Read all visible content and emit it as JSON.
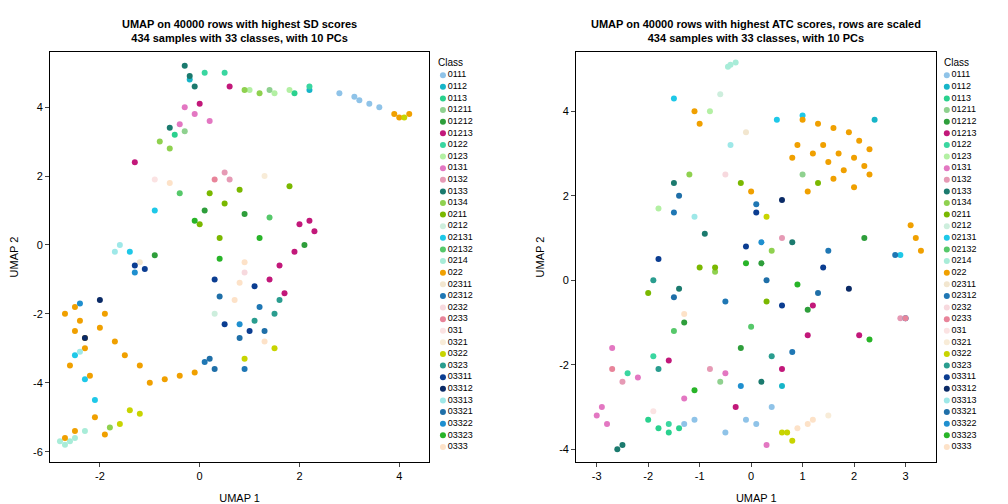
{
  "chart_data": [
    {
      "type": "scatter",
      "title": "UMAP on 40000 rows with highest SD scores\n434 samples with 33 classes, with 10 PCs",
      "x_label": "UMAP 1",
      "y_label": "UMAP 2",
      "xlim": [
        -3.0,
        4.6
      ],
      "ylim": [
        -6.3,
        5.6
      ],
      "xticks": [
        -2,
        0,
        2,
        4
      ],
      "yticks": [
        -6,
        -4,
        -2,
        0,
        2,
        4
      ],
      "legend": "right",
      "legend_title": "Class",
      "marker": "circle",
      "grid": false,
      "series": [
        {
          "name": "0111",
          "color": "#8fc3e8",
          "x": [
            3.2,
            3.4,
            3.6,
            3.1,
            2.8
          ],
          "y": [
            4.2,
            4.1,
            4.0,
            4.3,
            4.4
          ]
        },
        {
          "name": "0112",
          "color": "#17b5c8",
          "x": [
            2.2,
            -0.2
          ],
          "y": [
            4.5,
            4.8
          ]
        },
        {
          "name": "0113",
          "color": "#2ad18e",
          "x": [
            1.9,
            -0.5
          ],
          "y": [
            4.4,
            3.2
          ]
        },
        {
          "name": "01211",
          "color": "#8fd18f",
          "x": [
            -0.3,
            1.4
          ],
          "y": [
            3.3,
            4.5
          ]
        },
        {
          "name": "01212",
          "color": "#2e9e3b",
          "x": [
            0.1,
            0.9,
            2.1,
            -0.9
          ],
          "y": [
            1.0,
            0.9,
            0.0,
            -0.3
          ]
        },
        {
          "name": "01213",
          "color": "#c2187a",
          "x": [
            0.0,
            -1.3,
            0.6,
            2.0,
            2.2,
            1.9,
            1.6,
            2.3,
            1.7,
            1.4
          ],
          "y": [
            4.1,
            2.4,
            4.6,
            0.6,
            0.7,
            -0.2,
            -0.6,
            0.4,
            -1.4,
            -1.0
          ]
        },
        {
          "name": "0122",
          "color": "#3ad6a0",
          "x": [
            0.5,
            0.1,
            2.2
          ],
          "y": [
            5.0,
            5.0,
            4.6
          ]
        },
        {
          "name": "0123",
          "color": "#b3f0a3",
          "x": [
            1.0,
            1.5,
            1.8
          ],
          "y": [
            4.5,
            4.4,
            4.5
          ]
        },
        {
          "name": "0131",
          "color": "#e377c2",
          "x": [
            -0.1,
            -0.3,
            0.2,
            -0.4
          ],
          "y": [
            3.8,
            4.0,
            3.6,
            3.5
          ]
        },
        {
          "name": "0132",
          "color": "#e69ab5",
          "x": [
            0.5,
            0.6
          ],
          "y": [
            2.1,
            1.9
          ]
        },
        {
          "name": "0133",
          "color": "#1b7a6e",
          "x": [
            -0.3,
            -0.2,
            -0.1,
            -0.6
          ],
          "y": [
            5.2,
            4.9,
            4.6,
            3.4
          ]
        },
        {
          "name": "0134",
          "color": "#8fd14f",
          "x": [
            -0.8,
            -0.6,
            0.9,
            1.2,
            -1.8
          ],
          "y": [
            3.0,
            2.8,
            4.5,
            4.4,
            -5.3
          ]
        },
        {
          "name": "0211",
          "color": "#7ab800",
          "x": [
            0.2,
            0.5,
            0.0,
            0.8,
            1.8,
            0.4
          ],
          "y": [
            1.5,
            1.2,
            0.6,
            1.6,
            1.7,
            0.2
          ]
        },
        {
          "name": "0212",
          "color": "#cdeedd",
          "x": [
            0.3
          ],
          "y": [
            -2.0
          ]
        },
        {
          "name": "02131",
          "color": "#1ec8e8",
          "x": [
            -1.4,
            -0.9,
            -2.5,
            -2.3,
            -2.1
          ],
          "y": [
            -0.2,
            1.0,
            -3.2,
            -3.9,
            -4.5
          ]
        },
        {
          "name": "02132",
          "color": "#56c86a",
          "x": [
            -0.4,
            1.4
          ],
          "y": [
            1.5,
            0.8
          ]
        },
        {
          "name": "0214",
          "color": "#a8ecd8",
          "x": [
            -2.8,
            -2.7,
            -2.6,
            -2.5,
            -2.3
          ],
          "y": [
            -5.7,
            -5.8,
            -5.7,
            -5.6,
            -5.4
          ]
        },
        {
          "name": "022",
          "color": "#f0a000",
          "x": [
            4.2,
            4.0,
            3.9,
            -2.7,
            -2.5,
            -2.3,
            -2.6,
            -2.4,
            -2.0,
            -1.7,
            -1.5,
            -2.2,
            -2.5,
            -1.2,
            -0.7,
            -0.4,
            -0.1,
            -1.0,
            -2.5,
            -2.1,
            -1.9,
            -2.7,
            -2.3,
            -1.9
          ],
          "y": [
            3.8,
            3.7,
            3.8,
            -2.0,
            -2.5,
            -3.0,
            -3.5,
            -2.2,
            -2.4,
            -2.8,
            -3.2,
            -3.8,
            -1.8,
            -3.5,
            -3.9,
            -3.8,
            -3.7,
            -4.0,
            -5.4,
            -5.0,
            -5.5,
            -5.6,
            -2.7,
            -2.0
          ]
        },
        {
          "name": "02311",
          "color": "#f2e6cf",
          "x": [
            -1.2
          ],
          "y": [
            -0.5
          ]
        },
        {
          "name": "02312",
          "color": "#1f77b4",
          "x": [
            0.1,
            1.2,
            0.9
          ],
          "y": [
            -3.4,
            -1.8,
            -3.6
          ]
        },
        {
          "name": "0232",
          "color": "#f7d9de",
          "x": [
            0.9
          ],
          "y": [
            -0.8
          ]
        },
        {
          "name": "0233",
          "color": "#e8849a",
          "x": [
            0.3
          ],
          "y": [
            1.9
          ]
        },
        {
          "name": "031",
          "color": "#fbe3e3",
          "x": [
            -0.9
          ],
          "y": [
            1.9
          ]
        },
        {
          "name": "0321",
          "color": "#f8ecd8",
          "x": [
            1.3
          ],
          "y": [
            2.0
          ]
        },
        {
          "name": "0322",
          "color": "#c8d400",
          "x": [
            4.1,
            1.5,
            0.9,
            -1.4,
            -1.2,
            -1.6
          ],
          "y": [
            3.7,
            -3.0,
            -3.3,
            -4.8,
            -4.9,
            -5.2
          ]
        },
        {
          "name": "0323",
          "color": "#2a9d8f",
          "x": [
            1.1,
            1.5,
            1.6
          ],
          "y": [
            -2.2,
            -2.0,
            -1.6
          ]
        },
        {
          "name": "03311",
          "color": "#0b3d91",
          "x": [
            0.3,
            -1.1,
            1.1,
            0.5,
            1.0,
            -1.3
          ],
          "y": [
            -1.0,
            -0.7,
            -1.2,
            -2.3,
            -2.5,
            -0.6
          ]
        },
        {
          "name": "03312",
          "color": "#0a2a66",
          "x": [
            -2.0,
            -2.3
          ],
          "y": [
            -1.6,
            -2.7
          ]
        },
        {
          "name": "03313",
          "color": "#9ee8e8",
          "x": [
            -1.6,
            -1.7,
            -2.4
          ],
          "y": [
            0.0,
            -0.2,
            -3.1
          ]
        },
        {
          "name": "03321",
          "color": "#1f6fa8",
          "x": [
            0.4,
            0.8,
            1.3,
            0.2,
            0.3
          ],
          "y": [
            -1.5,
            -2.7,
            -2.5,
            -3.3,
            -3.6
          ]
        },
        {
          "name": "03322",
          "color": "#1f8fcf",
          "x": [
            -1.3,
            0.8,
            -2.4
          ],
          "y": [
            -0.8,
            -2.3,
            -1.7
          ]
        },
        {
          "name": "03323",
          "color": "#28b428",
          "x": [
            -0.1,
            1.2,
            0.4
          ],
          "y": [
            0.7,
            0.2,
            -0.4
          ]
        },
        {
          "name": "0333",
          "color": "#fde2c8",
          "x": [
            -0.6,
            0.7,
            0.8,
            0.9,
            1.3
          ],
          "y": [
            1.8,
            -1.6,
            -1.1,
            -0.5,
            -2.8
          ]
        }
      ]
    },
    {
      "type": "scatter",
      "title": "UMAP on 40000 rows with highest ATC scores, rows are scaled\n434 samples with 33 classes, with 10 PCs",
      "x_label": "UMAP 1",
      "y_label": "UMAP 2",
      "xlim": [
        -3.4,
        3.6
      ],
      "ylim": [
        -4.3,
        5.4
      ],
      "xticks": [
        -3,
        -2,
        -1,
        0,
        1,
        2,
        3
      ],
      "yticks": [
        -4,
        -2,
        0,
        2,
        4
      ],
      "legend": "right",
      "legend_title": "Class",
      "marker": "circle",
      "grid": false,
      "series": [
        {
          "name": "0111",
          "color": "#8fc3e8",
          "x": [
            -0.1,
            0.1,
            -1.3,
            -1.1,
            -0.5,
            0.4
          ],
          "y": [
            -3.3,
            -3.4,
            -3.4,
            -3.3,
            -3.6,
            -3.0
          ]
        },
        {
          "name": "0112",
          "color": "#17b5c8",
          "x": [
            0.6,
            2.4
          ],
          "y": [
            -2.5,
            3.8
          ]
        },
        {
          "name": "0113",
          "color": "#2ad18e",
          "x": [
            -1.6,
            -1.8,
            -2.0,
            -1.4
          ],
          "y": [
            -3.6,
            -3.5,
            -3.3,
            -3.5
          ]
        },
        {
          "name": "01211",
          "color": "#8fd18f",
          "x": [
            -0.6,
            1.0
          ],
          "y": [
            -2.4,
            2.5
          ]
        },
        {
          "name": "01212",
          "color": "#2e9e3b",
          "x": [
            1.1,
            0.2,
            -1.3,
            2.2,
            -0.2
          ],
          "y": [
            -0.7,
            0.4,
            -1.0,
            1.0,
            -1.6
          ]
        },
        {
          "name": "01213",
          "color": "#c2187a",
          "x": [
            1.2,
            1.1,
            0.6,
            2.1,
            -0.3,
            3.0,
            -1.6
          ],
          "y": [
            -0.6,
            -1.3,
            -2.1,
            -1.3,
            -3.0,
            -0.9,
            -1.9
          ]
        },
        {
          "name": "0122",
          "color": "#3ad6a0",
          "x": [
            -2.4,
            -1.9,
            -1.6
          ],
          "y": [
            -2.2,
            -1.8,
            -3.4
          ]
        },
        {
          "name": "0123",
          "color": "#b3f0a3",
          "x": [
            -0.8,
            -1.8
          ],
          "y": [
            4.0,
            1.7
          ]
        },
        {
          "name": "0131",
          "color": "#e377c2",
          "x": [
            -3.0,
            -2.9,
            -2.8,
            -2.2,
            -1.3,
            -0.5,
            0.3,
            -2.7
          ],
          "y": [
            -3.2,
            -3.0,
            -3.4,
            -2.3,
            -2.8,
            -2.2,
            -3.9,
            -1.6
          ]
        },
        {
          "name": "0132",
          "color": "#e69ab5",
          "x": [
            -2.5,
            -0.8,
            0.6,
            2.9
          ],
          "y": [
            -2.4,
            -2.1,
            1.0,
            -0.9
          ]
        },
        {
          "name": "0133",
          "color": "#1b7a6e",
          "x": [
            -1.5,
            -0.9,
            0.8,
            -2.6,
            -2.5,
            -1.4,
            0.2
          ],
          "y": [
            2.3,
            1.1,
            0.9,
            -4.0,
            -3.9,
            -0.2,
            -2.4
          ]
        },
        {
          "name": "0134",
          "color": "#8fd14f",
          "x": [
            -1.2,
            0.4,
            -0.7
          ],
          "y": [
            2.5,
            0.7,
            0.2
          ]
        },
        {
          "name": "0211",
          "color": "#7ab800",
          "x": [
            -1.0,
            -0.7,
            0.3,
            1.3,
            -0.2,
            -2.0
          ],
          "y": [
            0.3,
            0.3,
            -0.5,
            2.3,
            2.3,
            -0.3
          ]
        },
        {
          "name": "0212",
          "color": "#cdeedd",
          "x": [
            -0.6
          ],
          "y": [
            4.4
          ]
        },
        {
          "name": "02131",
          "color": "#1ec8e8",
          "x": [
            1.0,
            0.5,
            2.9,
            3.0,
            -1.5
          ],
          "y": [
            3.9,
            3.8,
            0.6,
            -0.9,
            4.3
          ]
        },
        {
          "name": "02132",
          "color": "#56c86a",
          "x": [
            -1.5,
            0.0
          ],
          "y": [
            -1.2,
            -1.1
          ]
        },
        {
          "name": "0214",
          "color": "#a8ecd8",
          "x": [
            -0.4,
            -0.3,
            -0.45
          ],
          "y": [
            5.1,
            5.15,
            5.05
          ]
        },
        {
          "name": "022",
          "color": "#f0a000",
          "x": [
            1.0,
            1.3,
            1.6,
            1.9,
            2.1,
            2.3,
            2.2,
            2.0,
            1.7,
            1.4,
            1.2,
            0.9,
            1.5,
            1.8,
            2.3,
            2.0,
            1.6,
            0.8,
            -1.0,
            -1.1,
            3.1,
            3.2,
            3.3,
            0.0,
            1.1
          ],
          "y": [
            3.8,
            3.7,
            3.6,
            3.5,
            3.3,
            3.1,
            2.7,
            2.9,
            3.0,
            3.2,
            3.0,
            3.2,
            2.8,
            2.6,
            2.5,
            2.2,
            2.4,
            2.9,
            3.7,
            4.0,
            1.3,
            1.0,
            0.7,
            2.1,
            2.1
          ]
        },
        {
          "name": "02311",
          "color": "#f2e6cf",
          "x": [
            -0.1
          ],
          "y": [
            3.5
          ]
        },
        {
          "name": "02312",
          "color": "#1f77b4",
          "x": [
            -1.5,
            0.1,
            1.5,
            -0.5,
            0.8,
            2.8
          ],
          "y": [
            1.6,
            1.8,
            0.7,
            -0.5,
            -1.7,
            0.6
          ]
        },
        {
          "name": "0232",
          "color": "#f7d9de",
          "x": [
            -0.5
          ],
          "y": [
            2.5
          ]
        },
        {
          "name": "0233",
          "color": "#e8849a",
          "x": [
            -2.7,
            3.0
          ],
          "y": [
            -2.1,
            -0.9
          ]
        },
        {
          "name": "031",
          "color": "#fbe3e3",
          "x": [
            -1.9
          ],
          "y": [
            -3.1
          ]
        },
        {
          "name": "0321",
          "color": "#f8ecd8",
          "x": [
            1.5
          ],
          "y": [
            -3.2
          ]
        },
        {
          "name": "0322",
          "color": "#c8d400",
          "x": [
            0.7,
            0.8,
            0.6,
            0.3
          ],
          "y": [
            -3.6,
            -3.8,
            -3.6,
            1.5
          ]
        },
        {
          "name": "0323",
          "color": "#2a9d8f",
          "x": [
            -1.9,
            -1.8,
            0.4
          ],
          "y": [
            0.0,
            -2.1,
            -1.8
          ]
        },
        {
          "name": "03311",
          "color": "#0b3d91",
          "x": [
            0.1,
            1.4,
            -1.8,
            0.6,
            -0.1
          ],
          "y": [
            1.6,
            0.3,
            0.5,
            -0.6,
            0.8
          ]
        },
        {
          "name": "03312",
          "color": "#0a2a66",
          "x": [
            1.9,
            0.6
          ],
          "y": [
            -0.2,
            1.9
          ]
        },
        {
          "name": "03313",
          "color": "#9ee8e8",
          "x": [
            -0.4,
            -1.1
          ],
          "y": [
            3.2,
            1.5
          ]
        },
        {
          "name": "03321",
          "color": "#1f6fa8",
          "x": [
            -1.4,
            0.3,
            1.3,
            -1.5
          ],
          "y": [
            2.0,
            0.0,
            -0.3,
            -0.4
          ]
        },
        {
          "name": "03322",
          "color": "#1f8fcf",
          "x": [
            0.2,
            -0.2
          ],
          "y": [
            0.9,
            -2.5
          ]
        },
        {
          "name": "03323",
          "color": "#28b428",
          "x": [
            -0.1,
            0.9,
            -1.1,
            2.3
          ],
          "y": [
            0.4,
            -0.1,
            -2.6,
            -1.4
          ]
        },
        {
          "name": "0333",
          "color": "#fde2c8",
          "x": [
            1.1,
            1.2,
            0.9,
            -1.3
          ],
          "y": [
            -3.4,
            -3.3,
            -3.5,
            -0.8
          ]
        }
      ]
    }
  ]
}
